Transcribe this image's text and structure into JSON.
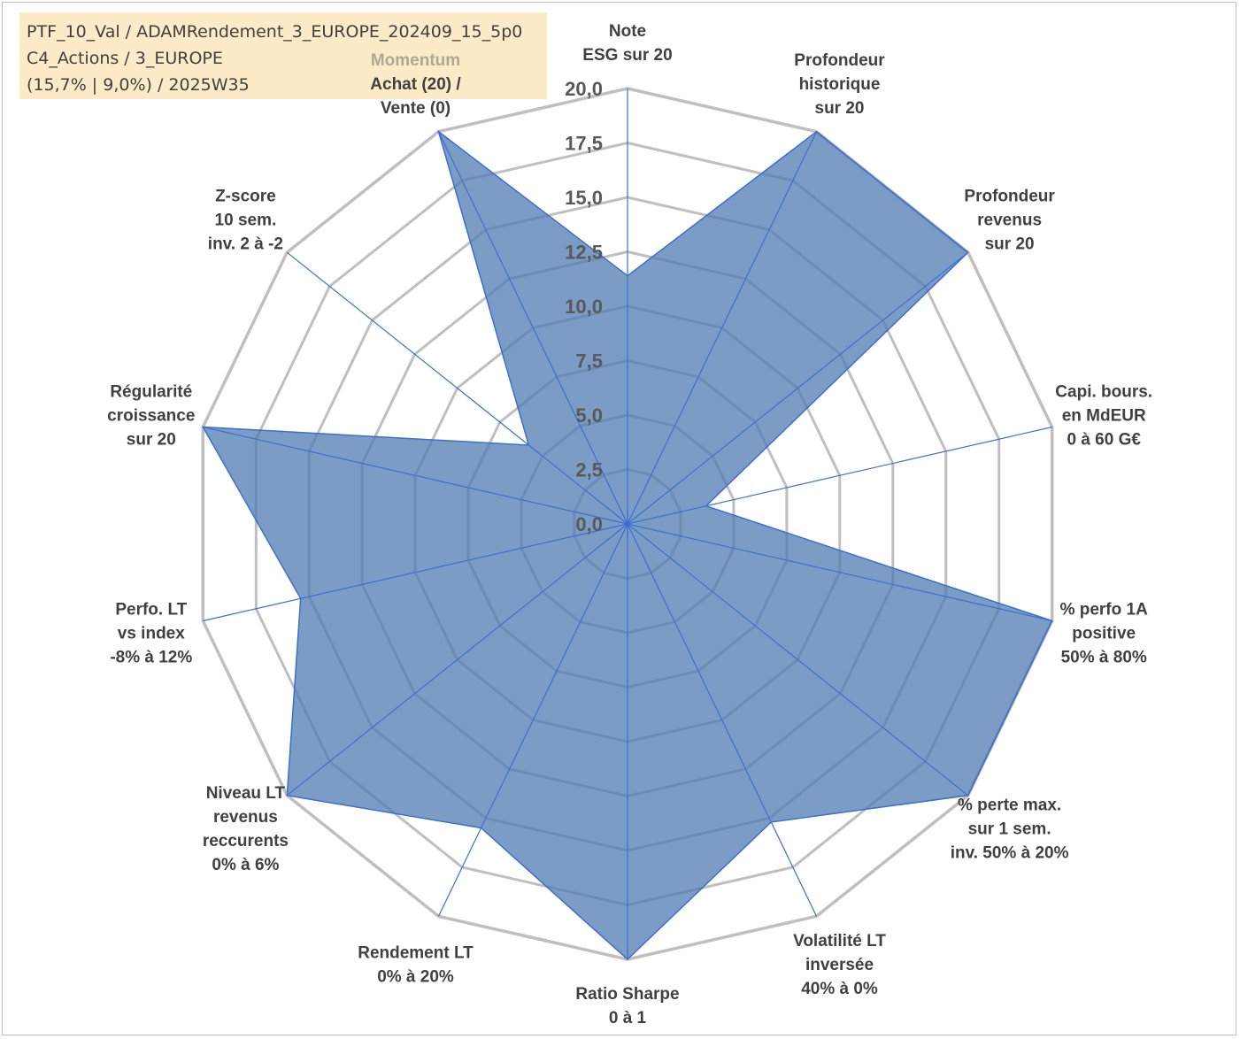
{
  "header": {
    "lines": [
      "PTF_10_Val / ADAMRendement_3_EUROPE_202409_15_5p0",
      "C4_Actions / 3_EUROPE",
      "(15,7% | 9,0%) / 2025W35"
    ]
  },
  "colors": {
    "fill": "#4f7bb0",
    "stroke": "#3b6fd1",
    "grid": "#bfbfbf",
    "spoke": "#3b6fd1",
    "label": "#404040",
    "label_muted": "#b0a794",
    "info_bg": "#fdebc8"
  },
  "chart_data": {
    "type": "radar",
    "rlim": [
      0,
      20
    ],
    "r_ticks": [
      "0,0",
      "2,5",
      "5,0",
      "7,5",
      "10,0",
      "12,5",
      "15,0",
      "17,5",
      "20,0"
    ],
    "grid": true,
    "legend": "none",
    "axes": [
      {
        "lines": [
          "Note",
          "ESG sur 20"
        ]
      },
      {
        "lines": [
          "Profondeur",
          "historique",
          "sur 20"
        ]
      },
      {
        "lines": [
          "Profondeur",
          "revenus",
          "sur 20"
        ]
      },
      {
        "lines": [
          "Capi. bours.",
          "en MdEUR",
          "0 à 60 G€"
        ]
      },
      {
        "lines": [
          "% perfo 1A",
          "positive",
          "50% à 80%"
        ]
      },
      {
        "lines": [
          "% perte max.",
          "sur 1 sem.",
          "inv. 50% à 20%"
        ]
      },
      {
        "lines": [
          "Volatilité LT",
          "inversée",
          "40% à 0%"
        ]
      },
      {
        "lines": [
          "Ratio Sharpe",
          "0 à 1"
        ]
      },
      {
        "lines": [
          "Rendement LT",
          "0% à 20%"
        ]
      },
      {
        "lines": [
          "Niveau LT",
          "revenus",
          "reccurents",
          "0% à 6%"
        ]
      },
      {
        "lines": [
          "Perfo. LT",
          "vs index",
          "-8% à 12%"
        ]
      },
      {
        "lines": [
          "Régularité",
          "croissance",
          "sur 20"
        ]
      },
      {
        "lines": [
          "Z-score",
          "10 sem.",
          "inv. 2 à -2"
        ]
      },
      {
        "lines": [
          "Momentum",
          "Achat (20) /",
          "Vente (0)"
        ],
        "muted_first_line": true
      }
    ],
    "series": [
      {
        "values": [
          11.4,
          20.0,
          20.0,
          3.7,
          20.0,
          20.0,
          15.2,
          20.0,
          15.5,
          20.0,
          15.4,
          20.0,
          5.8,
          20.0
        ]
      }
    ]
  }
}
